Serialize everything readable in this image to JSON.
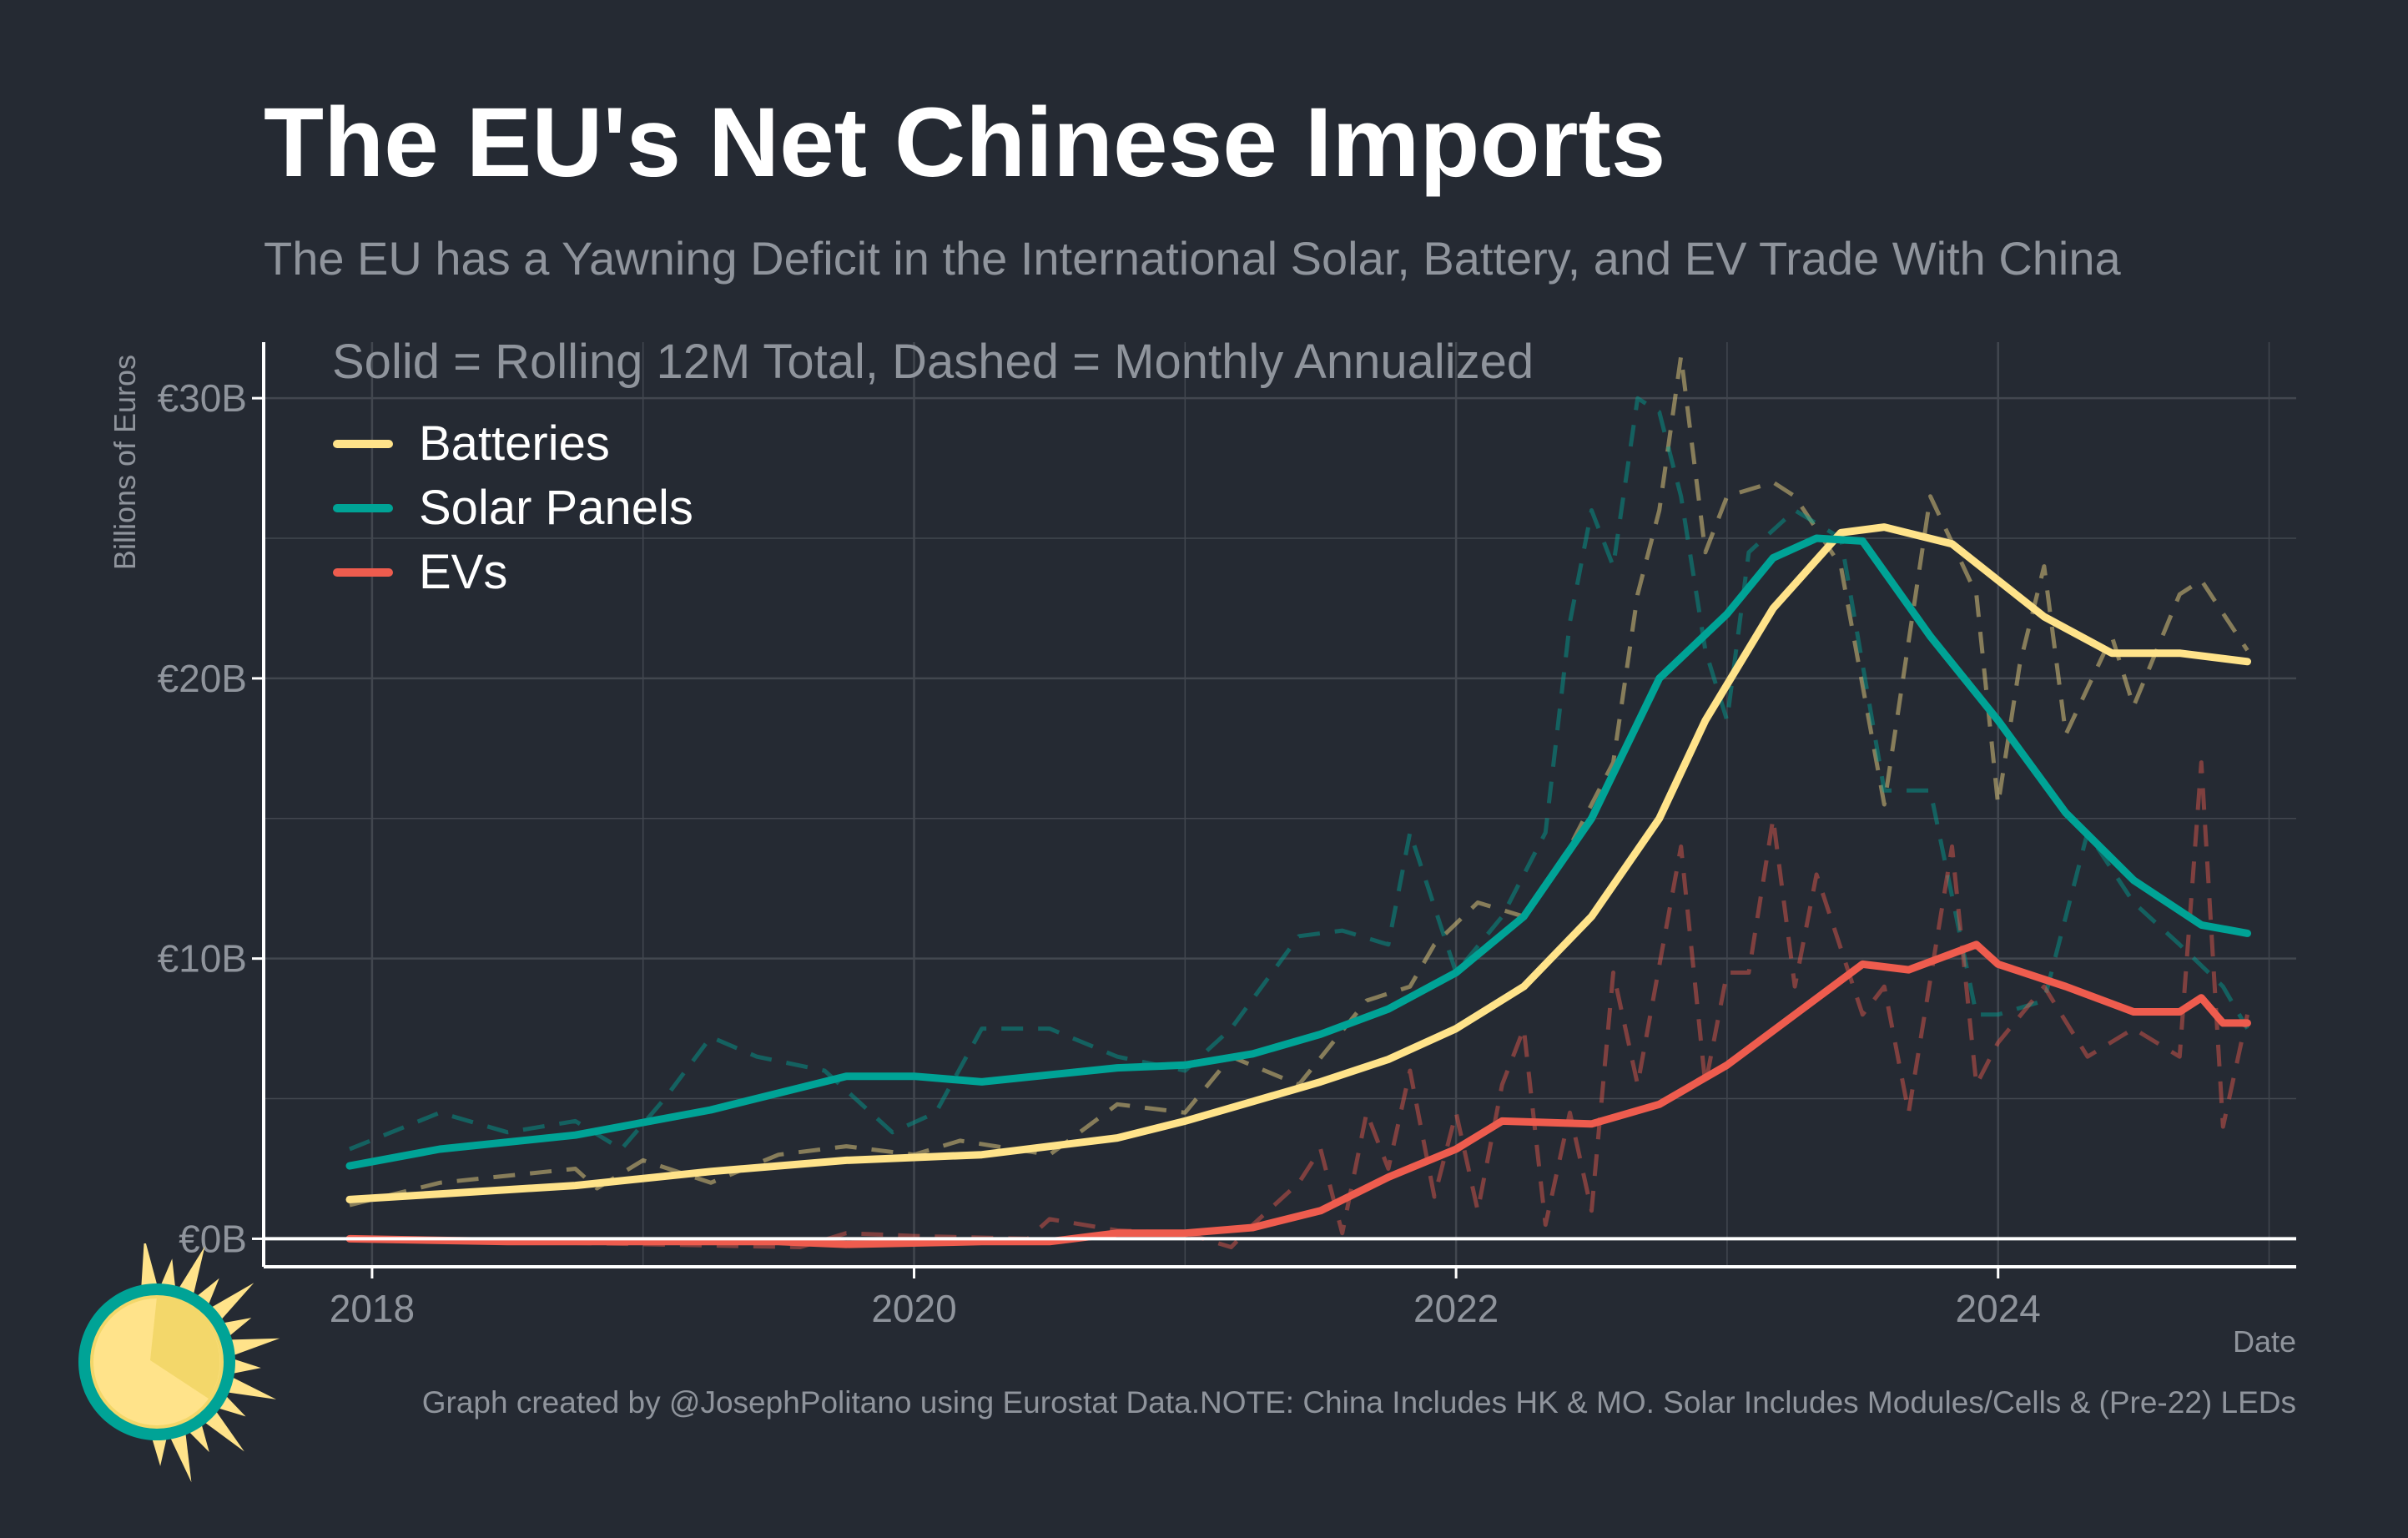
{
  "title": "The EU's Net Chinese Imports",
  "subtitle": "The EU has a Yawning Deficit in the International Solar, Battery, and EV Trade With China",
  "caption": "Graph created by @JosephPolitano using Eurostat Data.NOTE: China Includes HK & MO. Solar Includes Modules/Cells & (Pre-22) LEDs",
  "colors": {
    "background": "#252a33",
    "batteries": "#ffe38a",
    "solar": "#00a396",
    "evs": "#ee5c4e",
    "grid": "#42474f",
    "axis": "#ffffff",
    "text_muted": "#8f949c"
  },
  "chart_data": {
    "type": "line",
    "annotation": "Solid = Rolling 12M Total, Dashed = Monthly Annualized",
    "xlabel": "Date",
    "ylabel": "Billions of Euros",
    "xlim": [
      2017.6,
      2025.1
    ],
    "ylim": [
      -1,
      32
    ],
    "x_ticks": [
      {
        "value": 2018,
        "label": "2018"
      },
      {
        "value": 2020,
        "label": "2020"
      },
      {
        "value": 2022,
        "label": "2022"
      },
      {
        "value": 2024,
        "label": "2024"
      }
    ],
    "y_ticks": [
      {
        "value": 0,
        "label": "€0B"
      },
      {
        "value": 10,
        "label": "€10B"
      },
      {
        "value": 20,
        "label": "€20B"
      },
      {
        "value": 30,
        "label": "€30B"
      }
    ],
    "grid": true,
    "legend_position": "top-left",
    "legend": [
      "Batteries",
      "Solar Panels",
      "EVs"
    ],
    "series": [
      {
        "name": "Batteries",
        "style": "solid",
        "color": "#ffe38a",
        "points": [
          [
            2017.917,
            1.4
          ],
          [
            2018.25,
            1.6
          ],
          [
            2018.75,
            1.9
          ],
          [
            2019.25,
            2.4
          ],
          [
            2019.75,
            2.8
          ],
          [
            2020.25,
            3.0
          ],
          [
            2020.75,
            3.6
          ],
          [
            2021.0,
            4.2
          ],
          [
            2021.25,
            4.9
          ],
          [
            2021.5,
            5.6
          ],
          [
            2021.75,
            6.4
          ],
          [
            2022.0,
            7.5
          ],
          [
            2022.25,
            9.0
          ],
          [
            2022.5,
            11.5
          ],
          [
            2022.75,
            15.0
          ],
          [
            2022.92,
            18.5
          ],
          [
            2023.17,
            22.5
          ],
          [
            2023.42,
            25.2
          ],
          [
            2023.58,
            25.4
          ],
          [
            2023.83,
            24.8
          ],
          [
            2024.0,
            23.5
          ],
          [
            2024.17,
            22.2
          ],
          [
            2024.42,
            20.9
          ],
          [
            2024.67,
            20.9
          ],
          [
            2024.92,
            20.6
          ]
        ]
      },
      {
        "name": "Solar Panels",
        "style": "solid",
        "color": "#00a396",
        "points": [
          [
            2017.917,
            2.6
          ],
          [
            2018.25,
            3.2
          ],
          [
            2018.75,
            3.7
          ],
          [
            2019.25,
            4.6
          ],
          [
            2019.75,
            5.8
          ],
          [
            2020.0,
            5.8
          ],
          [
            2020.25,
            5.6
          ],
          [
            2020.75,
            6.1
          ],
          [
            2021.0,
            6.2
          ],
          [
            2021.25,
            6.6
          ],
          [
            2021.5,
            7.3
          ],
          [
            2021.75,
            8.2
          ],
          [
            2022.0,
            9.5
          ],
          [
            2022.25,
            11.5
          ],
          [
            2022.5,
            15.0
          ],
          [
            2022.75,
            20.0
          ],
          [
            2023.0,
            22.3
          ],
          [
            2023.17,
            24.3
          ],
          [
            2023.33,
            25.0
          ],
          [
            2023.5,
            24.9
          ],
          [
            2023.75,
            21.5
          ],
          [
            2024.0,
            18.5
          ],
          [
            2024.25,
            15.2
          ],
          [
            2024.5,
            12.8
          ],
          [
            2024.75,
            11.2
          ],
          [
            2024.92,
            10.9
          ]
        ]
      },
      {
        "name": "EVs",
        "style": "solid",
        "color": "#ee5c4e",
        "points": [
          [
            2017.917,
            0.0
          ],
          [
            2018.5,
            -0.1
          ],
          [
            2019.5,
            -0.1
          ],
          [
            2019.75,
            -0.2
          ],
          [
            2020.25,
            -0.1
          ],
          [
            2020.5,
            -0.1
          ],
          [
            2020.75,
            0.2
          ],
          [
            2021.0,
            0.2
          ],
          [
            2021.25,
            0.4
          ],
          [
            2021.5,
            1.0
          ],
          [
            2021.75,
            2.2
          ],
          [
            2022.0,
            3.2
          ],
          [
            2022.17,
            4.2
          ],
          [
            2022.5,
            4.1
          ],
          [
            2022.75,
            4.8
          ],
          [
            2023.0,
            6.2
          ],
          [
            2023.25,
            8.0
          ],
          [
            2023.5,
            9.8
          ],
          [
            2023.67,
            9.6
          ],
          [
            2023.92,
            10.5
          ],
          [
            2024.0,
            9.8
          ],
          [
            2024.25,
            9.0
          ],
          [
            2024.5,
            8.1
          ],
          [
            2024.67,
            8.1
          ],
          [
            2024.75,
            8.6
          ],
          [
            2024.83,
            7.7
          ],
          [
            2024.92,
            7.7
          ]
        ]
      },
      {
        "name": "Batteries (monthly annualized)",
        "style": "dashed",
        "color": "#ffe38a",
        "points": [
          [
            2017.917,
            1.2
          ],
          [
            2018.25,
            2.0
          ],
          [
            2018.75,
            2.5
          ],
          [
            2018.83,
            1.8
          ],
          [
            2019.0,
            2.8
          ],
          [
            2019.25,
            2.0
          ],
          [
            2019.5,
            3.0
          ],
          [
            2019.75,
            3.3
          ],
          [
            2020.0,
            3.0
          ],
          [
            2020.17,
            3.5
          ],
          [
            2020.5,
            3.0
          ],
          [
            2020.75,
            4.8
          ],
          [
            2021.0,
            4.5
          ],
          [
            2021.17,
            6.5
          ],
          [
            2021.42,
            5.5
          ],
          [
            2021.67,
            8.5
          ],
          [
            2021.83,
            9.0
          ],
          [
            2021.92,
            10.5
          ],
          [
            2022.08,
            12.0
          ],
          [
            2022.25,
            11.5
          ],
          [
            2022.42,
            14.0
          ],
          [
            2022.58,
            17.0
          ],
          [
            2022.67,
            23.0
          ],
          [
            2022.75,
            26.0
          ],
          [
            2022.83,
            31.5
          ],
          [
            2022.92,
            24.5
          ],
          [
            2023.0,
            26.5
          ],
          [
            2023.17,
            27.0
          ],
          [
            2023.25,
            26.5
          ],
          [
            2023.42,
            24.0
          ],
          [
            2023.58,
            15.5
          ],
          [
            2023.75,
            26.5
          ],
          [
            2023.92,
            23.0
          ],
          [
            2024.0,
            15.5
          ],
          [
            2024.08,
            20.5
          ],
          [
            2024.17,
            24.0
          ],
          [
            2024.25,
            18.0
          ],
          [
            2024.42,
            21.5
          ],
          [
            2024.5,
            19.0
          ],
          [
            2024.67,
            23.0
          ],
          [
            2024.75,
            23.5
          ],
          [
            2024.92,
            21.0
          ]
        ]
      },
      {
        "name": "Solar Panels (monthly annualized)",
        "style": "dashed",
        "color": "#00a396",
        "points": [
          [
            2017.917,
            3.2
          ],
          [
            2018.25,
            4.5
          ],
          [
            2018.5,
            3.8
          ],
          [
            2018.75,
            4.2
          ],
          [
            2018.92,
            3.2
          ],
          [
            2019.08,
            5.0
          ],
          [
            2019.25,
            7.2
          ],
          [
            2019.42,
            6.5
          ],
          [
            2019.67,
            6.0
          ],
          [
            2019.92,
            3.8
          ],
          [
            2020.08,
            4.5
          ],
          [
            2020.25,
            7.5
          ],
          [
            2020.5,
            7.5
          ],
          [
            2020.75,
            6.5
          ],
          [
            2021.0,
            6.0
          ],
          [
            2021.17,
            7.5
          ],
          [
            2021.42,
            10.8
          ],
          [
            2021.58,
            11.0
          ],
          [
            2021.75,
            10.5
          ],
          [
            2021.83,
            14.5
          ],
          [
            2022.0,
            9.5
          ],
          [
            2022.17,
            11.5
          ],
          [
            2022.33,
            14.5
          ],
          [
            2022.42,
            22.0
          ],
          [
            2022.5,
            26.0
          ],
          [
            2022.58,
            24.0
          ],
          [
            2022.67,
            30.0
          ],
          [
            2022.75,
            29.5
          ],
          [
            2022.83,
            26.5
          ],
          [
            2022.92,
            21.0
          ],
          [
            2023.0,
            18.5
          ],
          [
            2023.08,
            24.5
          ],
          [
            2023.25,
            26.0
          ],
          [
            2023.42,
            25.0
          ],
          [
            2023.58,
            16.0
          ],
          [
            2023.75,
            16.0
          ],
          [
            2023.92,
            8.0
          ],
          [
            2024.0,
            8.0
          ],
          [
            2024.17,
            8.5
          ],
          [
            2024.33,
            14.5
          ],
          [
            2024.5,
            12.0
          ],
          [
            2024.67,
            10.5
          ],
          [
            2024.83,
            9.0
          ],
          [
            2024.92,
            7.5
          ]
        ]
      },
      {
        "name": "EVs (monthly annualized)",
        "style": "dashed",
        "color": "#ee5c4e",
        "points": [
          [
            2017.917,
            0.0
          ],
          [
            2019.58,
            -0.3
          ],
          [
            2019.75,
            0.2
          ],
          [
            2020.0,
            0.1
          ],
          [
            2020.42,
            0.0
          ],
          [
            2020.5,
            0.7
          ],
          [
            2020.75,
            0.3
          ],
          [
            2021.0,
            0.2
          ],
          [
            2021.17,
            -0.3
          ],
          [
            2021.25,
            0.5
          ],
          [
            2021.42,
            2.0
          ],
          [
            2021.5,
            3.2
          ],
          [
            2021.58,
            0.2
          ],
          [
            2021.67,
            4.5
          ],
          [
            2021.75,
            2.5
          ],
          [
            2021.83,
            6.0
          ],
          [
            2021.92,
            1.5
          ],
          [
            2022.0,
            4.5
          ],
          [
            2022.08,
            1.0
          ],
          [
            2022.17,
            5.5
          ],
          [
            2022.25,
            7.5
          ],
          [
            2022.33,
            0.5
          ],
          [
            2022.42,
            4.5
          ],
          [
            2022.5,
            1.0
          ],
          [
            2022.58,
            9.5
          ],
          [
            2022.67,
            5.5
          ],
          [
            2022.83,
            14.0
          ],
          [
            2022.92,
            5.5
          ],
          [
            2023.0,
            9.5
          ],
          [
            2023.08,
            9.5
          ],
          [
            2023.17,
            15.0
          ],
          [
            2023.25,
            9.0
          ],
          [
            2023.33,
            13.0
          ],
          [
            2023.5,
            8.0
          ],
          [
            2023.58,
            9.0
          ],
          [
            2023.67,
            4.5
          ],
          [
            2023.83,
            14.0
          ],
          [
            2023.92,
            5.5
          ],
          [
            2024.0,
            7.0
          ],
          [
            2024.17,
            9.0
          ],
          [
            2024.33,
            6.5
          ],
          [
            2024.5,
            7.5
          ],
          [
            2024.67,
            6.5
          ],
          [
            2024.75,
            17.0
          ],
          [
            2024.83,
            4.0
          ],
          [
            2024.92,
            8.0
          ]
        ]
      }
    ]
  }
}
